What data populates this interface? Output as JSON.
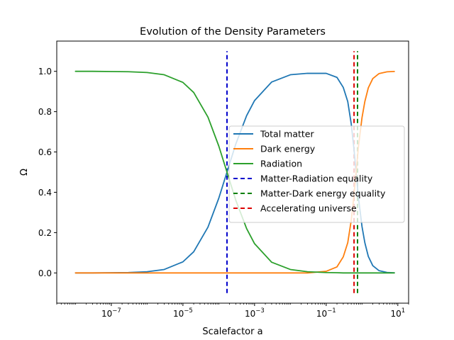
{
  "chart_data": {
    "type": "line",
    "title": "Evolution of the Density Parameters",
    "xlabel": "Scalefactor a",
    "ylabel": "Ω",
    "x_scale": "log",
    "xlim": [
      3e-09,
      20
    ],
    "ylim": [
      -0.15,
      1.15
    ],
    "x_ticks": [
      {
        "value": 1e-07,
        "base": "10",
        "exp": "−7"
      },
      {
        "value": 1e-05,
        "base": "10",
        "exp": "−5"
      },
      {
        "value": 0.001,
        "base": "10",
        "exp": "−3"
      },
      {
        "value": 0.1,
        "base": "10",
        "exp": "−1"
      },
      {
        "value": 10,
        "base": "10",
        "exp": "1"
      }
    ],
    "y_ticks": [
      {
        "value": 0.0,
        "label": "0.0"
      },
      {
        "value": 0.2,
        "label": "0.2"
      },
      {
        "value": 0.4,
        "label": "0.4"
      },
      {
        "value": 0.6,
        "label": "0.6"
      },
      {
        "value": 0.8,
        "label": "0.8"
      },
      {
        "value": 1.0,
        "label": "1.0"
      }
    ],
    "grid": false,
    "legend_position": "center-right",
    "x": [
      1e-08,
      3e-08,
      1e-07,
      3e-07,
      1e-06,
      3e-06,
      1e-05,
      2e-05,
      5e-05,
      0.0001,
      0.00017,
      0.0003,
      0.0006,
      0.001,
      0.003,
      0.01,
      0.03,
      0.1,
      0.2,
      0.3,
      0.4,
      0.5,
      0.6,
      0.7,
      0.8,
      1.0,
      1.2,
      1.5,
      2,
      3,
      5,
      8
    ],
    "series": [
      {
        "name": "Total matter",
        "color": "#1f77b4",
        "values": [
          0.0,
          0.0,
          0.001,
          0.002,
          0.006,
          0.017,
          0.055,
          0.105,
          0.227,
          0.37,
          0.5,
          0.64,
          0.78,
          0.855,
          0.947,
          0.983,
          0.99,
          0.99,
          0.97,
          0.92,
          0.85,
          0.74,
          0.61,
          0.48,
          0.37,
          0.23,
          0.15,
          0.082,
          0.036,
          0.011,
          0.0024,
          0.0006
        ]
      },
      {
        "name": "Dark energy",
        "color": "#ff7f0e",
        "values": [
          0.0,
          0.0,
          0.0,
          0.0,
          0.0,
          0.0,
          0.0,
          0.0,
          0.0,
          0.0,
          0.0,
          0.0,
          0.0,
          0.0,
          0.0,
          0.0,
          0.0,
          0.008,
          0.03,
          0.08,
          0.15,
          0.26,
          0.39,
          0.52,
          0.63,
          0.77,
          0.85,
          0.918,
          0.964,
          0.989,
          0.9976,
          0.9994
        ]
      },
      {
        "name": "Radiation",
        "color": "#2ca02c",
        "values": [
          1.0,
          1.0,
          0.999,
          0.998,
          0.994,
          0.983,
          0.945,
          0.895,
          0.773,
          0.63,
          0.5,
          0.36,
          0.22,
          0.145,
          0.053,
          0.017,
          0.006,
          0.002,
          0.001,
          0.0,
          0.0,
          0.0,
          0.0,
          0.0,
          0.0,
          0.0,
          0.0,
          0.0,
          0.0,
          0.0,
          0.0,
          0.0
        ]
      }
    ],
    "vlines": [
      {
        "name": "Matter-Radiation equality",
        "x": 0.00017,
        "color": "#0000cc",
        "ymin": -0.1,
        "ymax": 1.1
      },
      {
        "name": "Matter-Dark energy equality",
        "x": 0.75,
        "color": "#008000",
        "ymin": -0.1,
        "ymax": 1.1
      },
      {
        "name": "Accelerating universe",
        "x": 0.6,
        "color": "#dd0000",
        "ymin": -0.1,
        "ymax": 1.1
      }
    ]
  }
}
